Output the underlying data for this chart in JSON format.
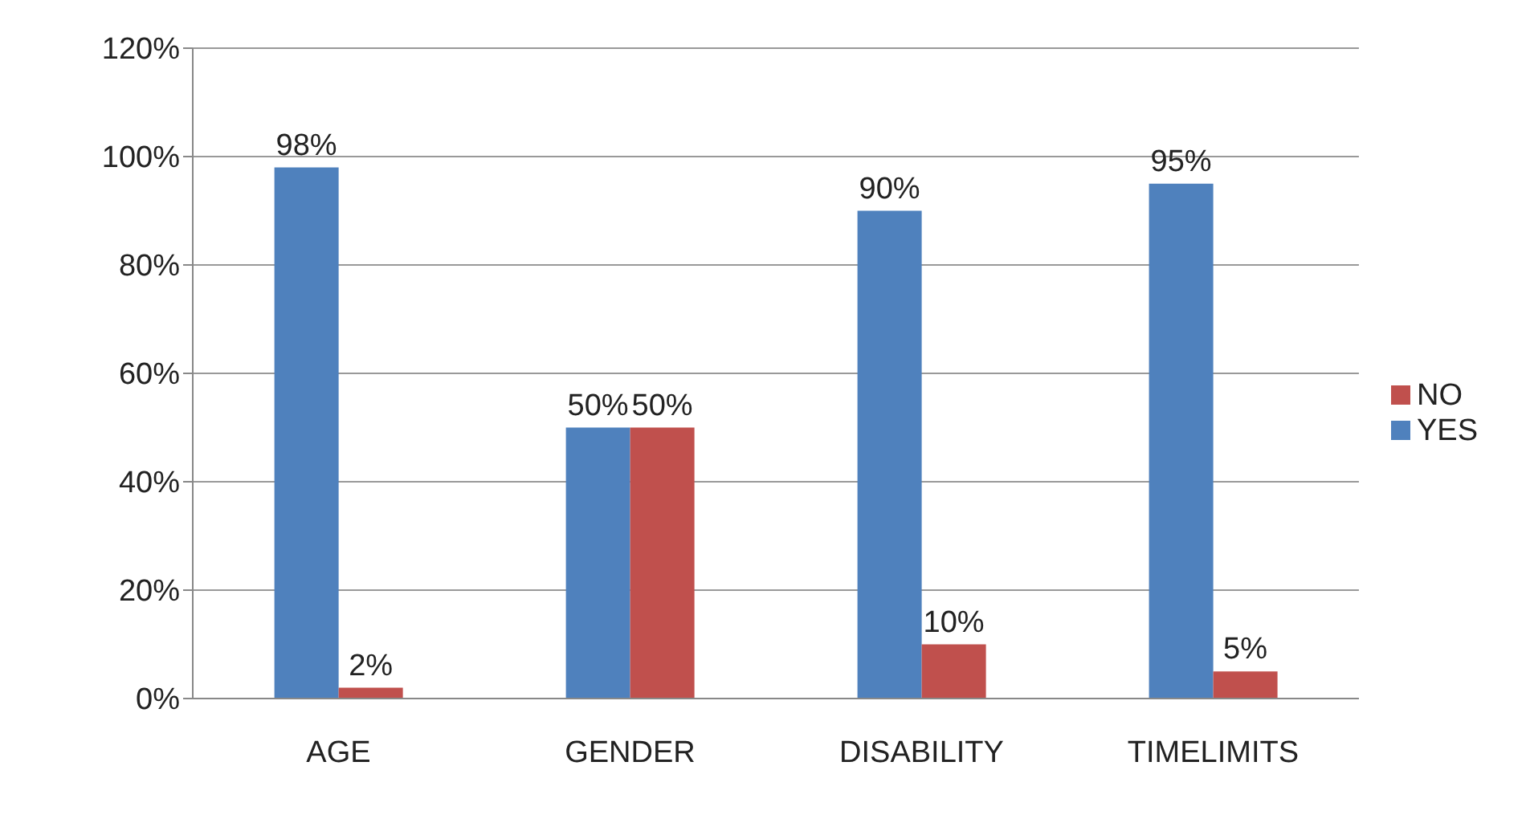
{
  "chart_data": {
    "type": "bar",
    "categories": [
      "AGE",
      "GENDER",
      "DISABILITY",
      "TIMELIMITS"
    ],
    "series": [
      {
        "name": "YES",
        "color": "#4f81bd",
        "values": [
          98,
          50,
          90,
          95
        ],
        "value_labels": [
          "98%",
          "50%",
          "90%",
          "95%"
        ]
      },
      {
        "name": "NO",
        "color": "#c0504d",
        "values": [
          2,
          50,
          10,
          5
        ],
        "value_labels": [
          "2%",
          "50%",
          "10%",
          "5%"
        ]
      }
    ],
    "ylim": [
      0,
      120
    ],
    "yticks": [
      {
        "value": 0,
        "label": "0%"
      },
      {
        "value": 20,
        "label": "20%"
      },
      {
        "value": 40,
        "label": "40%"
      },
      {
        "value": 60,
        "label": "60%"
      },
      {
        "value": 80,
        "label": "80%"
      },
      {
        "value": 100,
        "label": "100%"
      },
      {
        "value": 120,
        "label": "120%"
      }
    ],
    "grid": "y",
    "legend": "right"
  }
}
